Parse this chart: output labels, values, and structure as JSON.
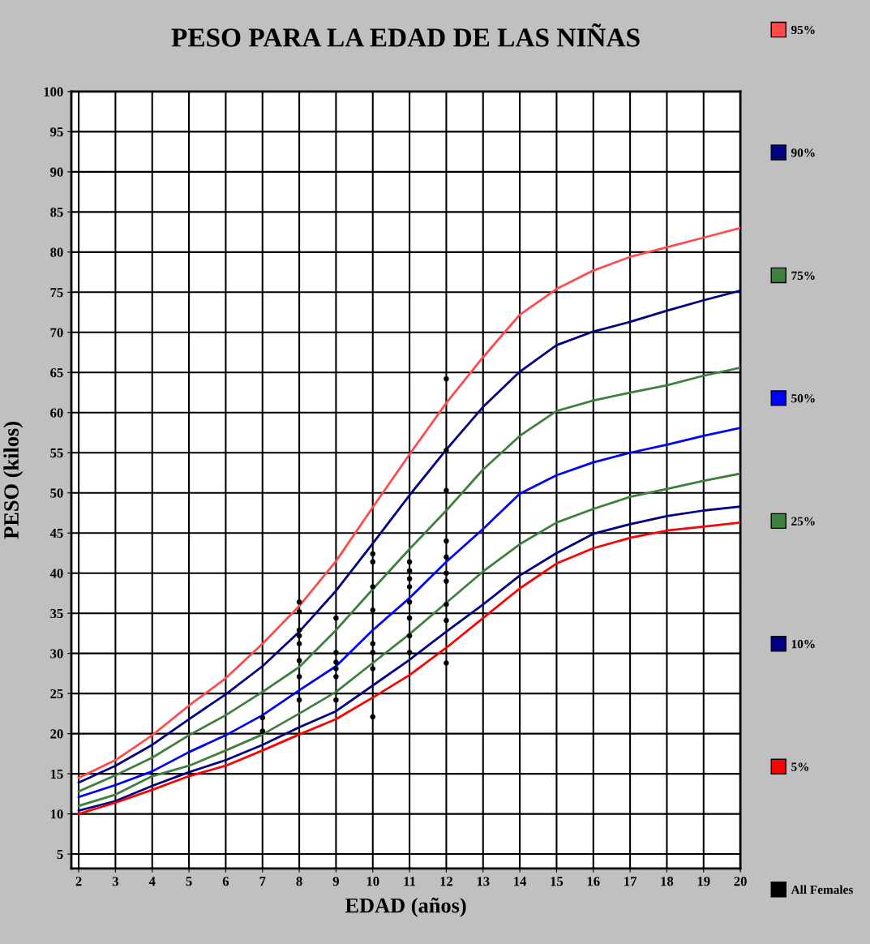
{
  "chart_data": {
    "type": "line",
    "title": "PESO PARA LA EDAD DE LAS NIÑAS",
    "xlabel": "EDAD (años)",
    "ylabel": "PESO (kilos)",
    "xlim": [
      1.8,
      20
    ],
    "ylim": [
      3.2,
      100
    ],
    "xticks": [
      2,
      3,
      4,
      5,
      6,
      7,
      8,
      9,
      10,
      11,
      12,
      13,
      14,
      15,
      16,
      17,
      18,
      19,
      20
    ],
    "yticks": [
      5,
      10,
      15,
      20,
      25,
      30,
      35,
      40,
      45,
      50,
      55,
      60,
      65,
      70,
      75,
      80,
      85,
      90,
      95,
      100
    ],
    "grid": true,
    "legend": "right",
    "marker": "none",
    "line_style": "solid",
    "x": [
      2,
      3,
      4,
      5,
      6,
      7,
      8,
      9,
      10,
      11,
      12,
      13,
      14,
      15,
      16,
      17,
      18,
      19,
      20
    ],
    "series": [
      {
        "name": "95%",
        "color": "#ff4b4b",
        "values": [
          14.5,
          16.7,
          19.8,
          23.5,
          26.9,
          31.2,
          35.9,
          41.5,
          48.2,
          54.8,
          61.2,
          66.9,
          72.2,
          75.4,
          77.7,
          79.4,
          80.6,
          81.8,
          83
        ]
      },
      {
        "name": "90%",
        "color": "#000080",
        "values": [
          13.9,
          16.0,
          18.6,
          21.8,
          24.9,
          28.4,
          32.7,
          37.8,
          43.7,
          49.7,
          55.4,
          60.7,
          65.1,
          68.4,
          70.1,
          71.3,
          72.7,
          74,
          75.2
        ]
      },
      {
        "name": "75%",
        "color": "#3f7f3f",
        "values": [
          12.8,
          14.8,
          17,
          19.8,
          22.3,
          25.2,
          28.3,
          32.9,
          38,
          43,
          47.8,
          52.9,
          57.1,
          60.2,
          61.5,
          62.5,
          63.4,
          64.6,
          65.6
        ]
      },
      {
        "name": "50%",
        "color": "#0000ff",
        "values": [
          12.1,
          13.6,
          15.3,
          17.7,
          19.8,
          22.3,
          25.4,
          28.4,
          32.9,
          36.9,
          41.4,
          45.5,
          49.9,
          52.2,
          53.8,
          55,
          56,
          57.1,
          58.1
        ]
      },
      {
        "name": "25%",
        "color": "#3f7f3f",
        "values": [
          11,
          12.4,
          14.7,
          16,
          17.9,
          19.9,
          22.5,
          25.2,
          28.8,
          32.4,
          36.3,
          40.2,
          43.6,
          46.3,
          48,
          49.5,
          50.5,
          51.5,
          52.4
        ]
      },
      {
        "name": "10%",
        "color": "#000080",
        "values": [
          10.4,
          11.6,
          13.5,
          15.2,
          16.7,
          18.6,
          20.8,
          22.8,
          26,
          29.2,
          32.7,
          36.1,
          39.7,
          42.5,
          44.9,
          46.1,
          47.1,
          47.8,
          48.3
        ]
      },
      {
        "name": "5%",
        "color": "#ff0000",
        "values": [
          10,
          11.4,
          13,
          14.7,
          16,
          17.9,
          19.9,
          21.8,
          24.5,
          27.3,
          30.7,
          34.4,
          38.1,
          41.2,
          43.1,
          44.4,
          45.3,
          45.8,
          46.3
        ]
      },
      {
        "name": "All Females",
        "type": "scatter",
        "marker": "circle",
        "color": "#000000",
        "x": [
          7,
          7,
          8,
          8,
          8,
          8,
          8,
          8,
          8,
          8,
          9,
          9,
          9,
          9,
          9,
          9,
          10,
          10,
          10,
          10,
          10,
          10,
          10,
          10,
          11,
          11,
          11,
          11,
          11,
          11,
          11,
          11,
          12,
          12,
          12,
          12,
          12,
          12,
          12,
          12,
          12,
          12
        ],
        "values": [
          22,
          20.3,
          36.4,
          35.2,
          32.9,
          32.2,
          31.2,
          29.1,
          27.1,
          24.2,
          34.4,
          30.1,
          28.9,
          28.1,
          27.1,
          24.2,
          42.4,
          41.4,
          38.3,
          35.4,
          31.2,
          30.1,
          28.1,
          22.1,
          41.4,
          40.3,
          39.3,
          38.3,
          36.4,
          34.4,
          32.2,
          30.1,
          64.2,
          50.3,
          44,
          42,
          40,
          39,
          36.1,
          34.1,
          28.8,
          55.3
        ]
      }
    ]
  }
}
